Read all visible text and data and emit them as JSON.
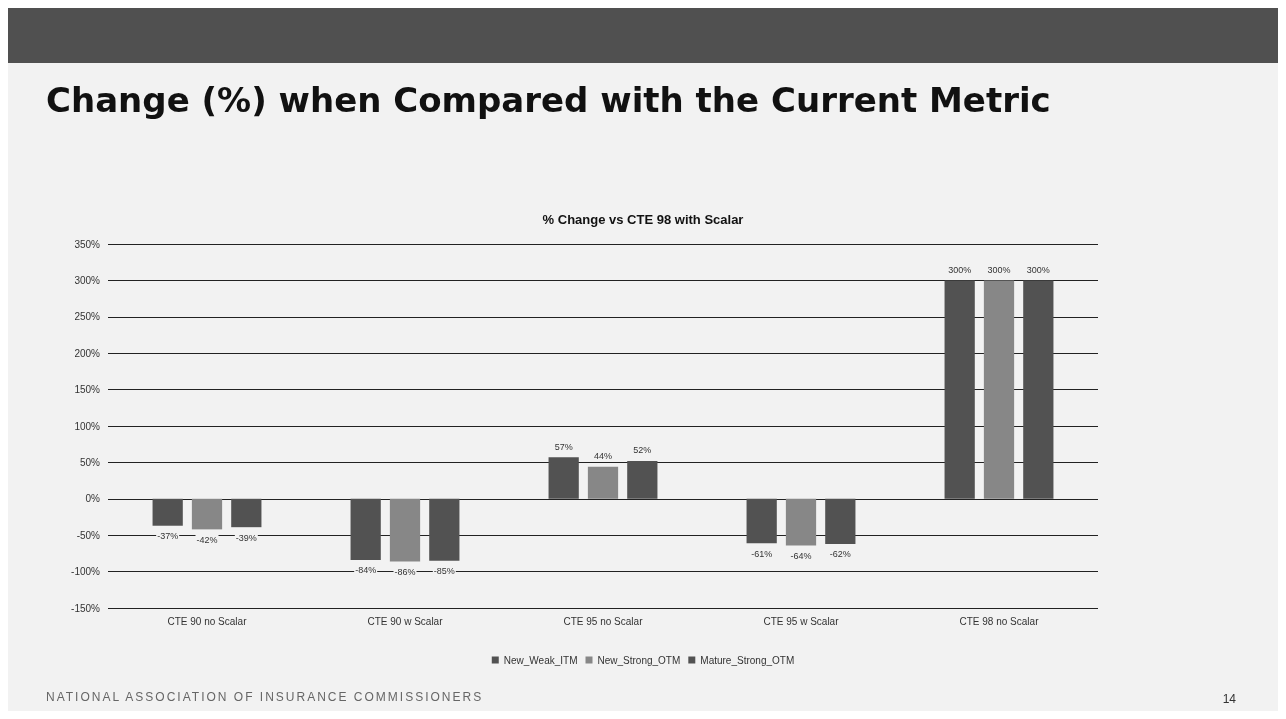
{
  "chart_data": {
    "type": "bar",
    "title": "Change (%) when Compared with the Current Metric",
    "subtitle": "% Change vs CTE 98 with Scalar",
    "categories": [
      "CTE 90 no Scalar",
      "CTE 90 w Scalar",
      "CTE 95 no Scalar",
      "CTE 95 w Scalar",
      "CTE 98 no Scalar"
    ],
    "series": [
      {
        "name": "New_Weak_ITM",
        "color": "#525252",
        "values": [
          -37,
          -84,
          57,
          -61,
          300
        ],
        "value_labels": [
          "-37%",
          "-84%",
          "57%",
          "-61%",
          "300%"
        ]
      },
      {
        "name": "New_Strong_OTM",
        "color": "#878787",
        "values": [
          -42,
          -86,
          44,
          -64,
          300
        ],
        "value_labels": [
          "-42%",
          "-86%",
          "44%",
          "-64%",
          "300%"
        ]
      },
      {
        "name": "Mature_Strong_OTM",
        "color": "#525252",
        "values": [
          -39,
          -85,
          52,
          -62,
          300
        ],
        "value_labels": [
          "-39%",
          "-85%",
          "52%",
          "-62%",
          "300%"
        ]
      }
    ],
    "ylim": [
      -150,
      350
    ],
    "yticks": [
      {
        "value": -150,
        "label": "-150%"
      },
      {
        "value": -100,
        "label": "-100%"
      },
      {
        "value": -50,
        "label": "-50%"
      },
      {
        "value": 0,
        "label": "0%"
      },
      {
        "value": 50,
        "label": "50%"
      },
      {
        "value": 100,
        "label": "100%"
      },
      {
        "value": 150,
        "label": "150%"
      },
      {
        "value": 200,
        "label": "200%"
      },
      {
        "value": 250,
        "label": "250%"
      },
      {
        "value": 300,
        "label": "300%"
      },
      {
        "value": 350,
        "label": "350%"
      }
    ],
    "grid": "y",
    "legend": "bottom",
    "annotations": [
      "NATIONAL ASSOCIATION OF INSURANCE COMMISSIONERS",
      "14"
    ]
  }
}
